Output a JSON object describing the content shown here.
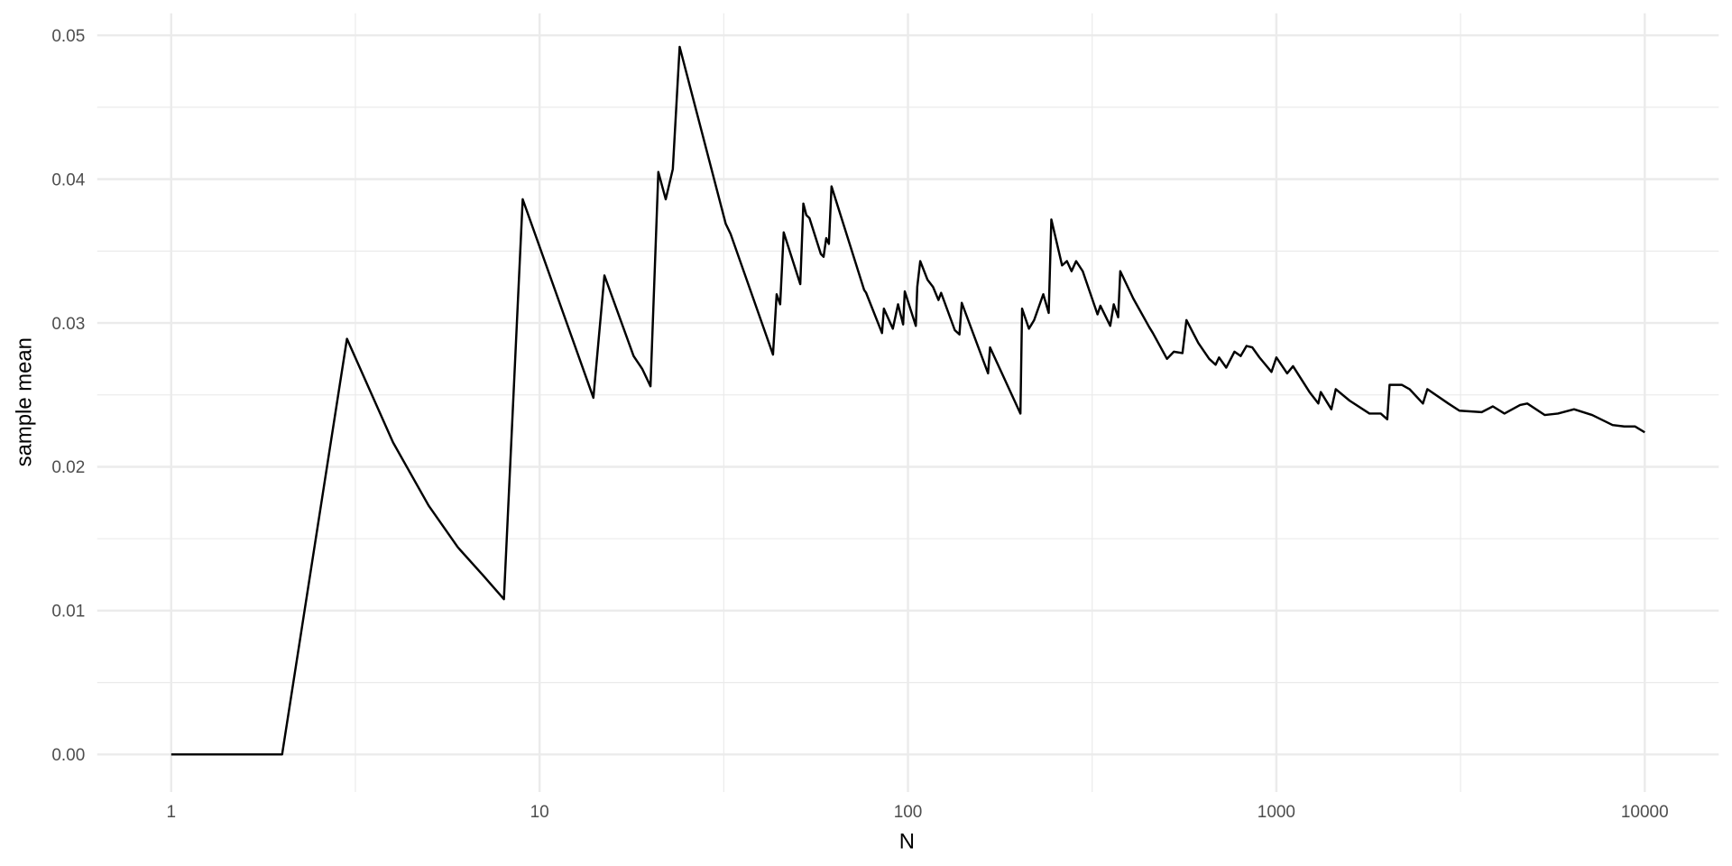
{
  "chart_data": {
    "type": "line",
    "title": "",
    "xlabel": "N",
    "ylabel": "sample mean",
    "x_scale": "log10",
    "xlim": [
      1,
      10000
    ],
    "ylim": [
      0,
      0.05
    ],
    "x_ticks": [
      "1",
      "10",
      "100",
      "1000",
      "10000"
    ],
    "x_tick_values": [
      1,
      10,
      100,
      1000,
      10000
    ],
    "y_ticks": [
      "0.00",
      "0.01",
      "0.02",
      "0.03",
      "0.04",
      "0.05"
    ],
    "y_tick_values": [
      0,
      0.01,
      0.02,
      0.03,
      0.04,
      0.05
    ],
    "grid": true,
    "line_color": "#000000",
    "grid_color": "#ebebeb",
    "series": [
      {
        "x": [
          1,
          2,
          3,
          4,
          5,
          6,
          7,
          8,
          9,
          14,
          15,
          18,
          19,
          20,
          21,
          22,
          23,
          24,
          32,
          33,
          43,
          44,
          45,
          46,
          51,
          52,
          53,
          54,
          58,
          59,
          60,
          61,
          62,
          76,
          77,
          85,
          86,
          91,
          94,
          97,
          98,
          105,
          106,
          108,
          113,
          117,
          121,
          123,
          134,
          138,
          140,
          165,
          167,
          202,
          204,
          213,
          220,
          233,
          241,
          245,
          262,
          270,
          278,
          286,
          298,
          327,
          333,
          354,
          362,
          372,
          377,
          409,
          452,
          462,
          505,
          527,
          556,
          570,
          614,
          657,
          684,
          699,
          731,
          770,
          800,
          830,
          860,
          900,
          970,
          1000,
          1070,
          1110,
          1230,
          1300,
          1320,
          1410,
          1450,
          1580,
          1790,
          1920,
          2000,
          2030,
          2190,
          2300,
          2500,
          2570,
          2930,
          3140,
          3610,
          3870,
          4160,
          4590,
          4800,
          5350,
          5810,
          6430,
          7200,
          8180,
          8800,
          9420,
          10000
        ],
        "y": [
          0,
          0,
          0.0289,
          0.0217,
          0.0173,
          0.0144,
          0.0125,
          0.0108,
          0.0386,
          0.0248,
          0.0333,
          0.0277,
          0.0268,
          0.0256,
          0.0405,
          0.0386,
          0.0407,
          0.0492,
          0.0369,
          0.0362,
          0.0278,
          0.032,
          0.0313,
          0.0363,
          0.0327,
          0.0383,
          0.0375,
          0.0373,
          0.0348,
          0.0346,
          0.0359,
          0.0355,
          0.0395,
          0.0323,
          0.0321,
          0.0293,
          0.031,
          0.0296,
          0.0313,
          0.0299,
          0.0322,
          0.0298,
          0.0325,
          0.0343,
          0.033,
          0.0325,
          0.0316,
          0.0321,
          0.0295,
          0.0292,
          0.0314,
          0.0265,
          0.0283,
          0.0237,
          0.031,
          0.0296,
          0.0302,
          0.032,
          0.0307,
          0.0372,
          0.034,
          0.0343,
          0.0336,
          0.0343,
          0.0336,
          0.0306,
          0.0312,
          0.0298,
          0.0313,
          0.0304,
          0.0336,
          0.0317,
          0.0297,
          0.0293,
          0.0275,
          0.028,
          0.0279,
          0.0302,
          0.0286,
          0.0275,
          0.0271,
          0.0276,
          0.0269,
          0.028,
          0.0277,
          0.0284,
          0.0283,
          0.0276,
          0.0266,
          0.0276,
          0.0265,
          0.027,
          0.0252,
          0.0244,
          0.0252,
          0.024,
          0.0254,
          0.0246,
          0.0237,
          0.0237,
          0.0233,
          0.0257,
          0.0257,
          0.0254,
          0.0244,
          0.0254,
          0.0244,
          0.0239,
          0.0238,
          0.0242,
          0.0237,
          0.0243,
          0.0244,
          0.0236,
          0.0237,
          0.024,
          0.0236,
          0.0229,
          0.0228,
          0.0228,
          0.0224
        ]
      }
    ]
  }
}
